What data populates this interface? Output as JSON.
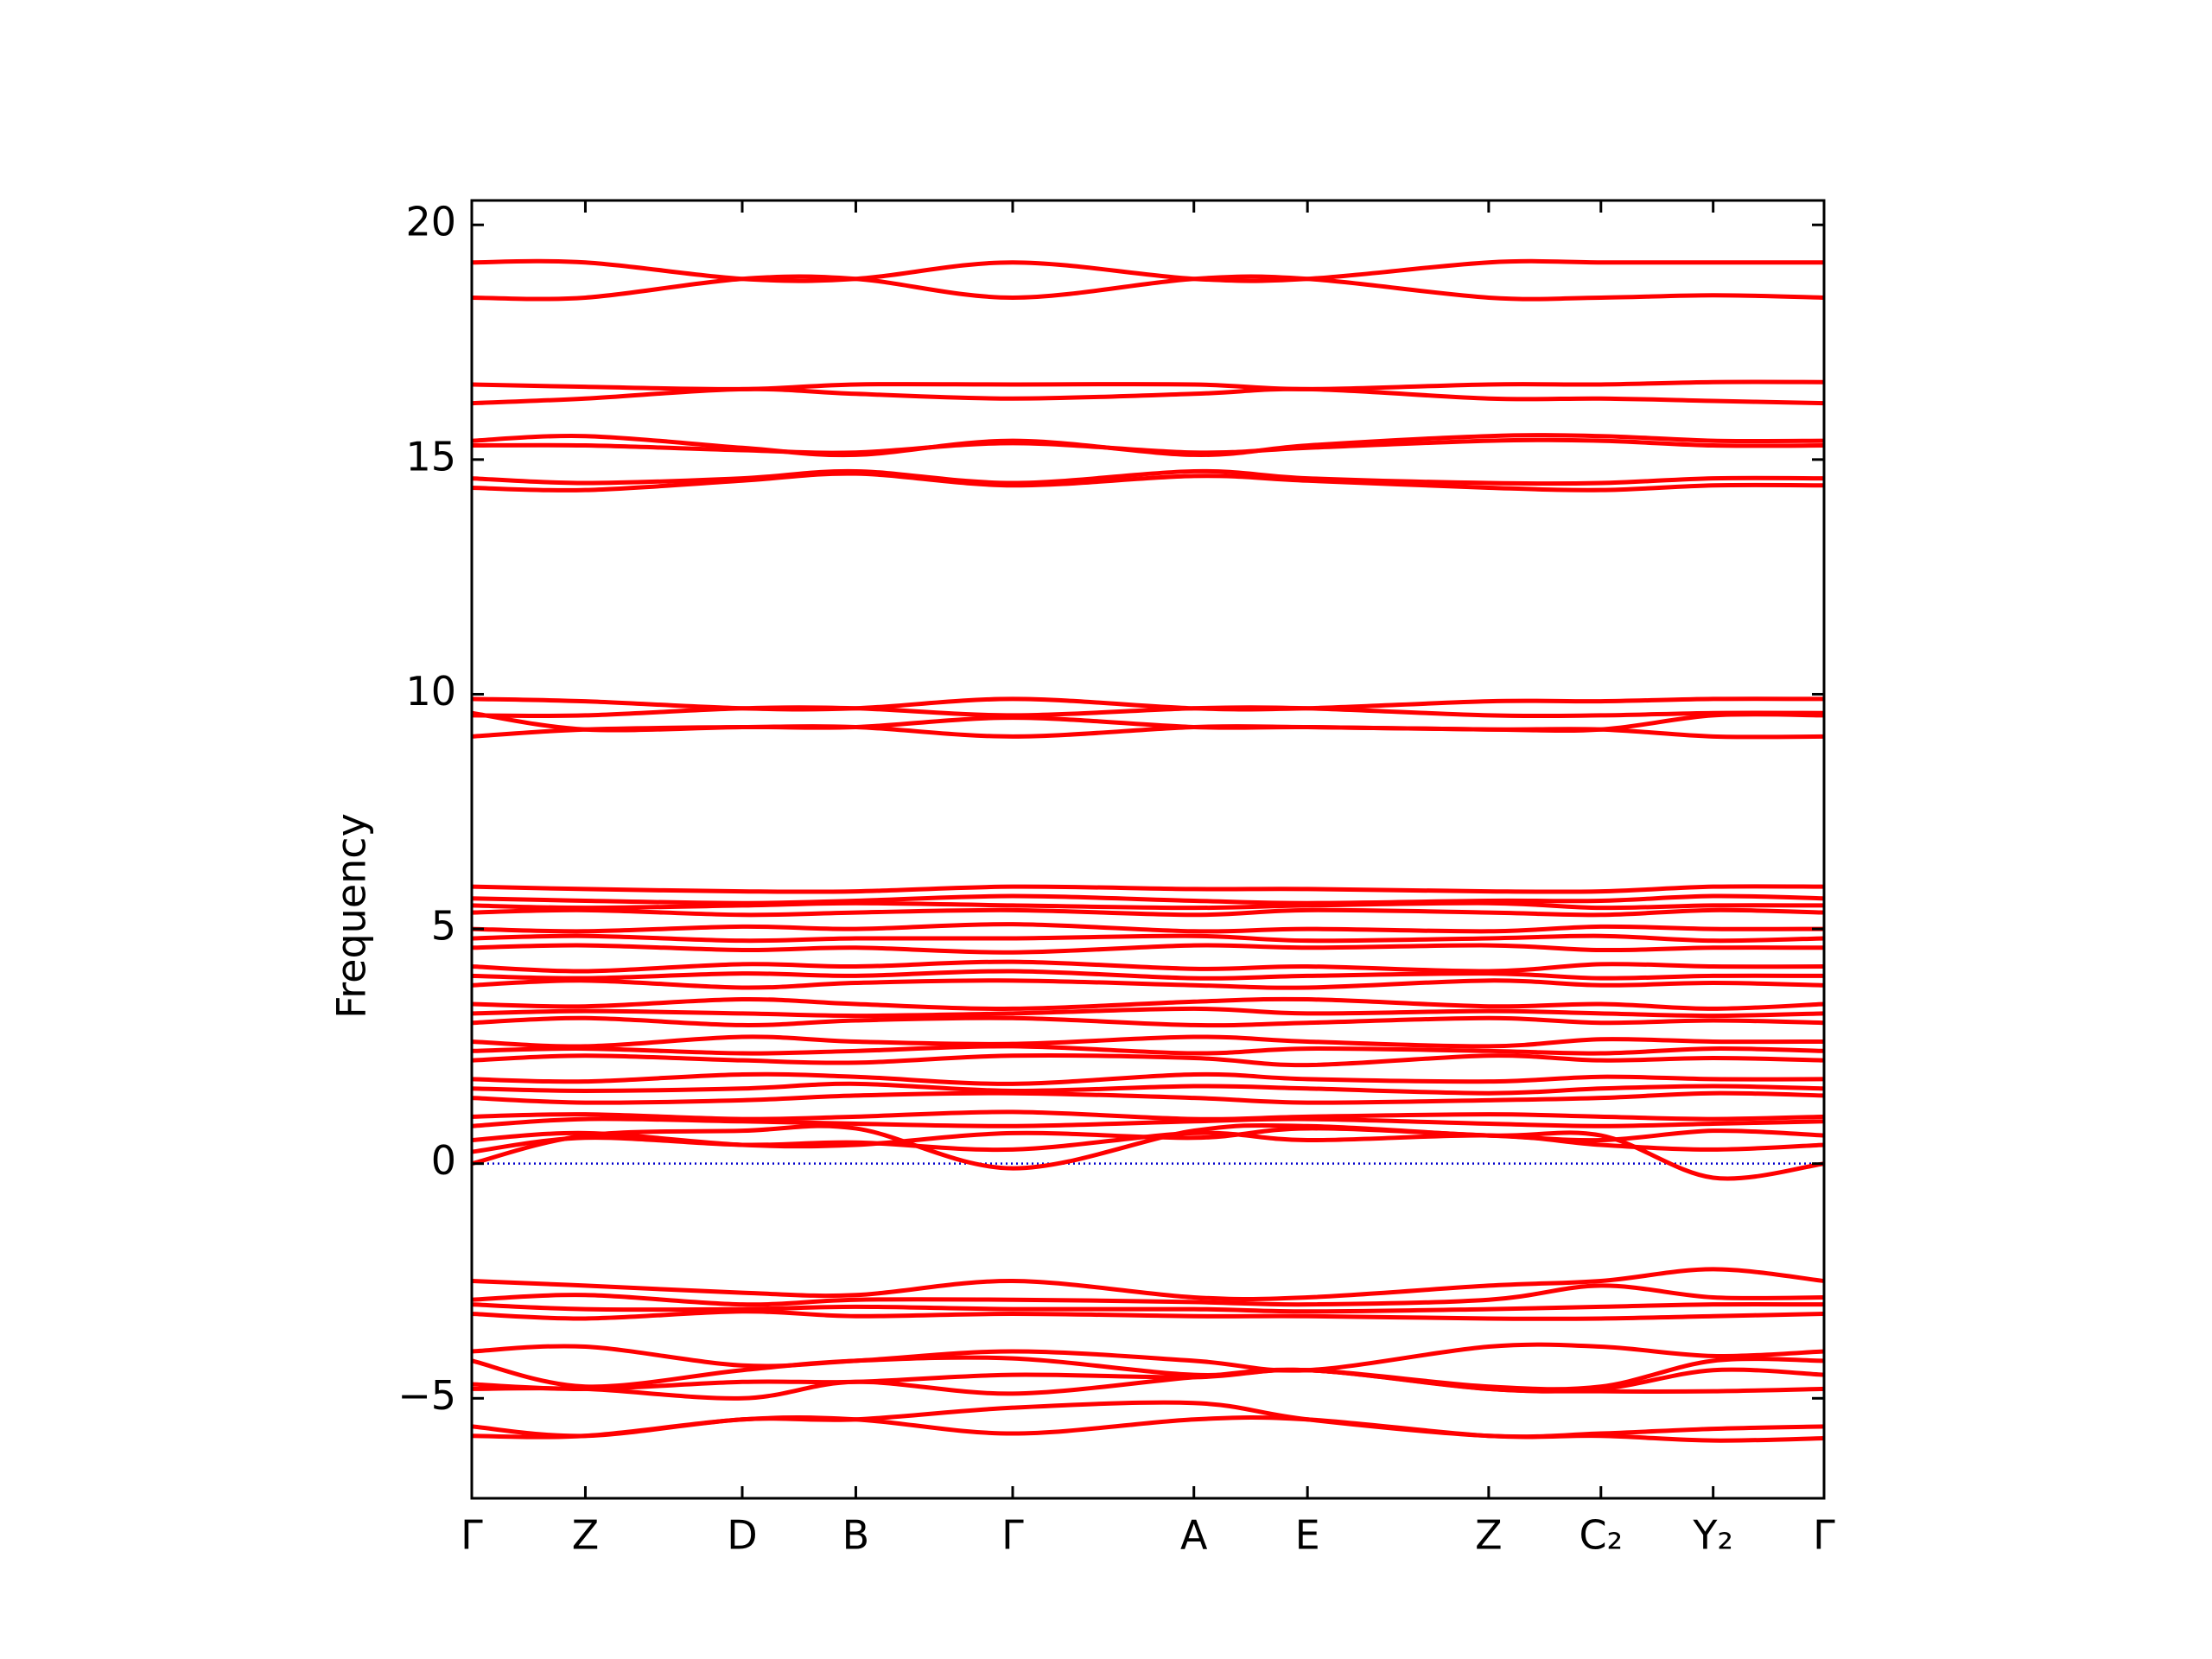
{
  "chart_data": {
    "type": "band",
    "ylabel": "Frequency",
    "color": "#ff0000",
    "zero_line": {
      "value": 0,
      "color": "#0000cc"
    },
    "xlim": [
      0,
      1
    ],
    "ylim": [
      -7.13,
      20.52
    ],
    "xticks": [
      {
        "value": 0,
        "label": "Γ"
      },
      {
        "value": 0.084,
        "label": "Z"
      },
      {
        "value": 0.2,
        "label": "D"
      },
      {
        "value": 0.284,
        "label": "B"
      },
      {
        "value": 0.4,
        "label": "Γ"
      },
      {
        "value": 0.534,
        "label": "A"
      },
      {
        "value": 0.618,
        "label": "E"
      },
      {
        "value": 0.752,
        "label": "Z"
      },
      {
        "value": 0.835,
        "label": "C₂"
      },
      {
        "value": 0.918,
        "label": "Y₂"
      },
      {
        "value": 1,
        "label": "Γ"
      }
    ],
    "yticks": [
      {
        "value": -5,
        "label": "−5"
      },
      0,
      5,
      10,
      15,
      20
    ],
    "x": [
      0,
      0.084,
      0.2,
      0.284,
      0.4,
      0.534,
      0.618,
      0.752,
      0.835,
      0.918,
      1
    ],
    "bands": [
      [
        19.2,
        19.2,
        18.85,
        18.85,
        19.2,
        18.85,
        18.85,
        19.2,
        19.2,
        19.2,
        19.2
      ],
      [
        18.45,
        18.45,
        18.85,
        18.85,
        18.45,
        18.85,
        18.85,
        18.45,
        18.45,
        18.5,
        18.45
      ],
      [
        16.6,
        16.55,
        16.5,
        16.6,
        16.6,
        16.6,
        16.5,
        16.6,
        16.6,
        16.65,
        16.65
      ],
      [
        16.2,
        16.3,
        16.5,
        16.4,
        16.3,
        16.4,
        16.5,
        16.3,
        16.3,
        16.25,
        16.2
      ],
      [
        15.4,
        15.5,
        15.25,
        15.1,
        15.4,
        15.1,
        15.3,
        15.5,
        15.5,
        15.4,
        15.4
      ],
      [
        15.3,
        15.3,
        15.2,
        15.15,
        15.35,
        15.15,
        15.25,
        15.4,
        15.4,
        15.3,
        15.3
      ],
      [
        14.6,
        14.5,
        14.6,
        14.75,
        14.5,
        14.75,
        14.6,
        14.5,
        14.5,
        14.6,
        14.6
      ],
      [
        14.4,
        14.35,
        14.55,
        14.7,
        14.45,
        14.65,
        14.55,
        14.4,
        14.35,
        14.45,
        14.45
      ],
      [
        9.9,
        9.85,
        9.7,
        9.7,
        9.9,
        9.7,
        9.7,
        9.85,
        9.85,
        9.9,
        9.9
      ],
      [
        9.55,
        9.55,
        9.7,
        9.7,
        9.55,
        9.7,
        9.7,
        9.55,
        9.55,
        9.6,
        9.6
      ],
      [
        9.6,
        9.25,
        9.3,
        9.3,
        9.5,
        9.3,
        9.3,
        9.25,
        9.25,
        9.55,
        9.55
      ],
      [
        9.1,
        9.25,
        9.3,
        9.3,
        9.1,
        9.3,
        9.3,
        9.25,
        9.25,
        9.1,
        9.1
      ],
      [
        0.5,
        0.65,
        0.4,
        0.4,
        0.65,
        0.55,
        0.75,
        0.6,
        0.5,
        0.7,
        0.6
      ],
      [
        0.25,
        0.55,
        0.4,
        0.45,
        0.3,
        0.65,
        0.5,
        0.6,
        0.4,
        0.3,
        0.4
      ],
      [
        0,
        0.6,
        0.7,
        0.75,
        -0.1,
        0.7,
        0.8,
        0.6,
        0.6,
        -0.3,
        0
      ],
      [
        0.8,
        0.95,
        0.9,
        0.85,
        0.8,
        0.9,
        0.95,
        0.85,
        0.8,
        0.85,
        0.9
      ],
      [
        1.0,
        1.05,
        0.95,
        1.0,
        1.1,
        0.95,
        1.0,
        1.05,
        1.0,
        0.95,
        1.0
      ],
      [
        1.4,
        1.3,
        1.35,
        1.45,
        1.5,
        1.4,
        1.3,
        1.35,
        1.4,
        1.5,
        1.45
      ],
      [
        1.6,
        1.55,
        1.6,
        1.7,
        1.55,
        1.65,
        1.6,
        1.5,
        1.6,
        1.65,
        1.6
      ],
      [
        1.8,
        1.75,
        1.9,
        1.85,
        1.7,
        1.9,
        1.8,
        1.75,
        1.85,
        1.8,
        1.8
      ],
      [
        2.2,
        2.3,
        2.2,
        2.15,
        2.3,
        2.25,
        2.1,
        2.3,
        2.2,
        2.25,
        2.2
      ],
      [
        2.4,
        2.45,
        2.35,
        2.4,
        2.5,
        2.35,
        2.45,
        2.4,
        2.35,
        2.45,
        2.4
      ],
      [
        2.6,
        2.5,
        2.7,
        2.6,
        2.55,
        2.7,
        2.6,
        2.5,
        2.65,
        2.6,
        2.6
      ],
      [
        3.0,
        3.1,
        2.95,
        3.05,
        3.1,
        2.95,
        3.0,
        3.1,
        3.0,
        3.05,
        3.0
      ],
      [
        3.2,
        3.25,
        3.2,
        3.15,
        3.2,
        3.3,
        3.2,
        3.25,
        3.2,
        3.15,
        3.2
      ],
      [
        3.4,
        3.35,
        3.5,
        3.4,
        3.3,
        3.45,
        3.5,
        3.35,
        3.4,
        3.3,
        3.4
      ],
      [
        3.8,
        3.9,
        3.75,
        3.85,
        3.9,
        3.8,
        3.75,
        3.9,
        3.8,
        3.85,
        3.8
      ],
      [
        4.0,
        3.95,
        4.05,
        4.0,
        4.1,
        3.95,
        4.0,
        4.05,
        3.95,
        4.0,
        4.0
      ],
      [
        4.2,
        4.1,
        4.25,
        4.2,
        4.3,
        4.15,
        4.2,
        4.1,
        4.25,
        4.2,
        4.2
      ],
      [
        4.6,
        4.65,
        4.55,
        4.6,
        4.5,
        4.65,
        4.6,
        4.65,
        4.55,
        4.6,
        4.6
      ],
      [
        4.8,
        4.85,
        4.75,
        4.8,
        4.8,
        4.85,
        4.75,
        4.8,
        4.85,
        4.75,
        4.8
      ],
      [
        5.0,
        4.95,
        5.05,
        5.0,
        5.1,
        4.95,
        5.0,
        4.95,
        5.05,
        5.0,
        5.0
      ],
      [
        5.35,
        5.4,
        5.3,
        5.35,
        5.4,
        5.3,
        5.4,
        5.35,
        5.3,
        5.4,
        5.35
      ],
      [
        5.5,
        5.45,
        5.5,
        5.55,
        5.5,
        5.45,
        5.5,
        5.55,
        5.45,
        5.5,
        5.5
      ],
      [
        5.65,
        5.6,
        5.55,
        5.6,
        5.7,
        5.6,
        5.55,
        5.6,
        5.6,
        5.7,
        5.65
      ],
      [
        5.9,
        5.85,
        5.8,
        5.8,
        5.9,
        5.85,
        5.85,
        5.8,
        5.8,
        5.9,
        5.9
      ],
      [
        -2.5,
        -2.6,
        -2.75,
        -2.8,
        -2.5,
        -2.85,
        -2.85,
        -2.6,
        -2.5,
        -2.25,
        -2.5
      ],
      [
        -2.9,
        -2.8,
        -3.0,
        -2.9,
        -2.9,
        -2.95,
        -3.0,
        -2.9,
        -2.6,
        -2.85,
        -2.85
      ],
      [
        -3.0,
        -3.1,
        -3.1,
        -3.05,
        -3.1,
        -3.1,
        -3.15,
        -3.1,
        -3.05,
        -3.0,
        -3.0
      ],
      [
        -3.2,
        -3.3,
        -3.15,
        -3.25,
        -3.2,
        -3.25,
        -3.25,
        -3.3,
        -3.3,
        -3.25,
        -3.2
      ],
      [
        -4.0,
        -3.9,
        -4.3,
        -4.2,
        -4.0,
        -4.2,
        -4.4,
        -3.9,
        -3.9,
        -4.1,
        -4.0
      ],
      [
        -4.2,
        -4.75,
        -4.4,
        -4.2,
        -4.15,
        -4.5,
        -4.4,
        -4.75,
        -4.75,
        -4.2,
        -4.2
      ],
      [
        -4.7,
        -4.8,
        -4.65,
        -4.65,
        -4.5,
        -4.55,
        -4.4,
        -4.8,
        -4.8,
        -4.4,
        -4.5
      ],
      [
        -4.8,
        -4.8,
        -5.0,
        -4.65,
        -4.9,
        -4.55,
        -4.4,
        -4.8,
        -4.85,
        -4.85,
        -4.8
      ],
      [
        -5.6,
        -5.8,
        -5.45,
        -5.45,
        -5.2,
        -5.1,
        -5.45,
        -5.8,
        -5.75,
        -5.65,
        -5.6
      ],
      [
        -5.8,
        -5.8,
        -5.45,
        -5.45,
        -5.75,
        -5.45,
        -5.45,
        -5.8,
        -5.8,
        -5.9,
        -5.85
      ]
    ]
  }
}
